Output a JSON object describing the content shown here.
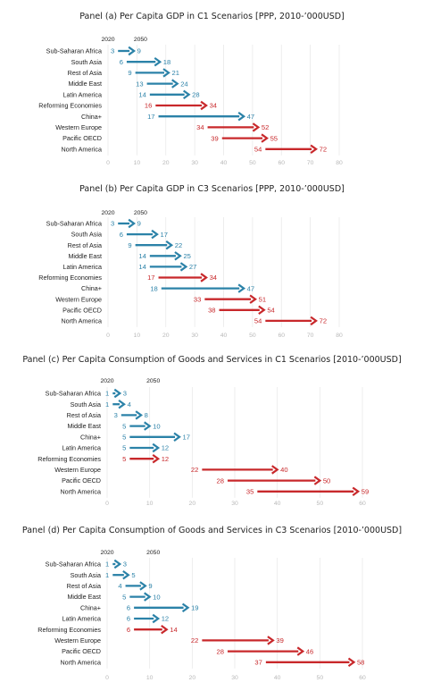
{
  "colors": {
    "developing": "#2b82a8",
    "developed": "#c8282b",
    "grid": "#e9e9e9",
    "tick": "#b8b8b8"
  },
  "chart_data": [
    {
      "type": "arrow",
      "title": "Panel (a) Per Capita GDP in C1 Scenarios [PPP, 2010-’000USD]",
      "start_label": "2020",
      "end_label": "2050",
      "xlim": [
        0,
        80
      ],
      "xticks": [
        0,
        10,
        20,
        30,
        40,
        50,
        60,
        70,
        80
      ],
      "grid": true,
      "categories": [
        "Sub-Saharan Africa",
        "South Asia",
        "Rest of Asia",
        "Middle East",
        "Latin America",
        "Reforming Economies",
        "China+",
        "Western Europe",
        "Pacific OECD",
        "North America"
      ],
      "start": [
        3,
        6,
        9,
        13,
        14,
        16,
        17,
        34,
        39,
        54
      ],
      "end": [
        9,
        18,
        21,
        24,
        28,
        34,
        47,
        52,
        55,
        72
      ],
      "group": [
        "developing",
        "developing",
        "developing",
        "developing",
        "developing",
        "developed",
        "developing",
        "developed",
        "developed",
        "developed"
      ]
    },
    {
      "type": "arrow",
      "title": "Panel (b) Per Capita GDP in C3 Scenarios [PPP, 2010-’000USD]",
      "start_label": "2020",
      "end_label": "2050",
      "xlim": [
        0,
        80
      ],
      "xticks": [
        0,
        10,
        20,
        30,
        40,
        50,
        60,
        70,
        80
      ],
      "grid": true,
      "categories": [
        "Sub-Saharan Africa",
        "South Asia",
        "Rest of Asia",
        "Middle East",
        "Latin America",
        "Reforming Economies",
        "China+",
        "Western Europe",
        "Pacific OECD",
        "North America"
      ],
      "start": [
        3,
        6,
        9,
        14,
        14,
        17,
        18,
        33,
        38,
        54
      ],
      "end": [
        9,
        17,
        22,
        25,
        27,
        34,
        47,
        51,
        54,
        72
      ],
      "group": [
        "developing",
        "developing",
        "developing",
        "developing",
        "developing",
        "developed",
        "developing",
        "developed",
        "developed",
        "developed"
      ]
    },
    {
      "type": "arrow",
      "title": "Panel (c) Per Capita Consumption of Goods and Services in C1 Scenarios [2010-’000USD]",
      "start_label": "2020",
      "end_label": "2050",
      "xlim": [
        0,
        60
      ],
      "xticks": [
        0,
        10,
        20,
        30,
        40,
        50,
        60
      ],
      "grid": true,
      "categories": [
        "Sub-Saharan Africa",
        "South Asia",
        "Rest of Asia",
        "Middle East",
        "China+",
        "Latin America",
        "Reforming Economies",
        "Western Europe",
        "Pacific OECD",
        "North America"
      ],
      "start": [
        1,
        1,
        3,
        5,
        5,
        5,
        5,
        22,
        28,
        35
      ],
      "end": [
        3,
        4,
        8,
        10,
        17,
        12,
        12,
        40,
        50,
        59
      ],
      "group": [
        "developing",
        "developing",
        "developing",
        "developing",
        "developing",
        "developing",
        "developed",
        "developed",
        "developed",
        "developed"
      ]
    },
    {
      "type": "arrow",
      "title": "Panel (d) Per Capita Consumption of Goods and Services in C3 Scenarios [2010-’000USD]",
      "start_label": "2020",
      "end_label": "2050",
      "xlim": [
        0,
        60
      ],
      "xticks": [
        0,
        10,
        20,
        30,
        40,
        50,
        60
      ],
      "grid": true,
      "categories": [
        "Sub-Saharan Africa",
        "South Asia",
        "Rest of Asia",
        "Middle East",
        "China+",
        "Latin America",
        "Reforming Economies",
        "Western Europe",
        "Pacific OECD",
        "North America"
      ],
      "start": [
        1,
        1,
        4,
        5,
        6,
        6,
        6,
        22,
        28,
        37
      ],
      "end": [
        3,
        5,
        9,
        10,
        19,
        12,
        14,
        39,
        46,
        58
      ],
      "group": [
        "developing",
        "developing",
        "developing",
        "developing",
        "developing",
        "developing",
        "developed",
        "developed",
        "developed",
        "developed"
      ]
    }
  ]
}
